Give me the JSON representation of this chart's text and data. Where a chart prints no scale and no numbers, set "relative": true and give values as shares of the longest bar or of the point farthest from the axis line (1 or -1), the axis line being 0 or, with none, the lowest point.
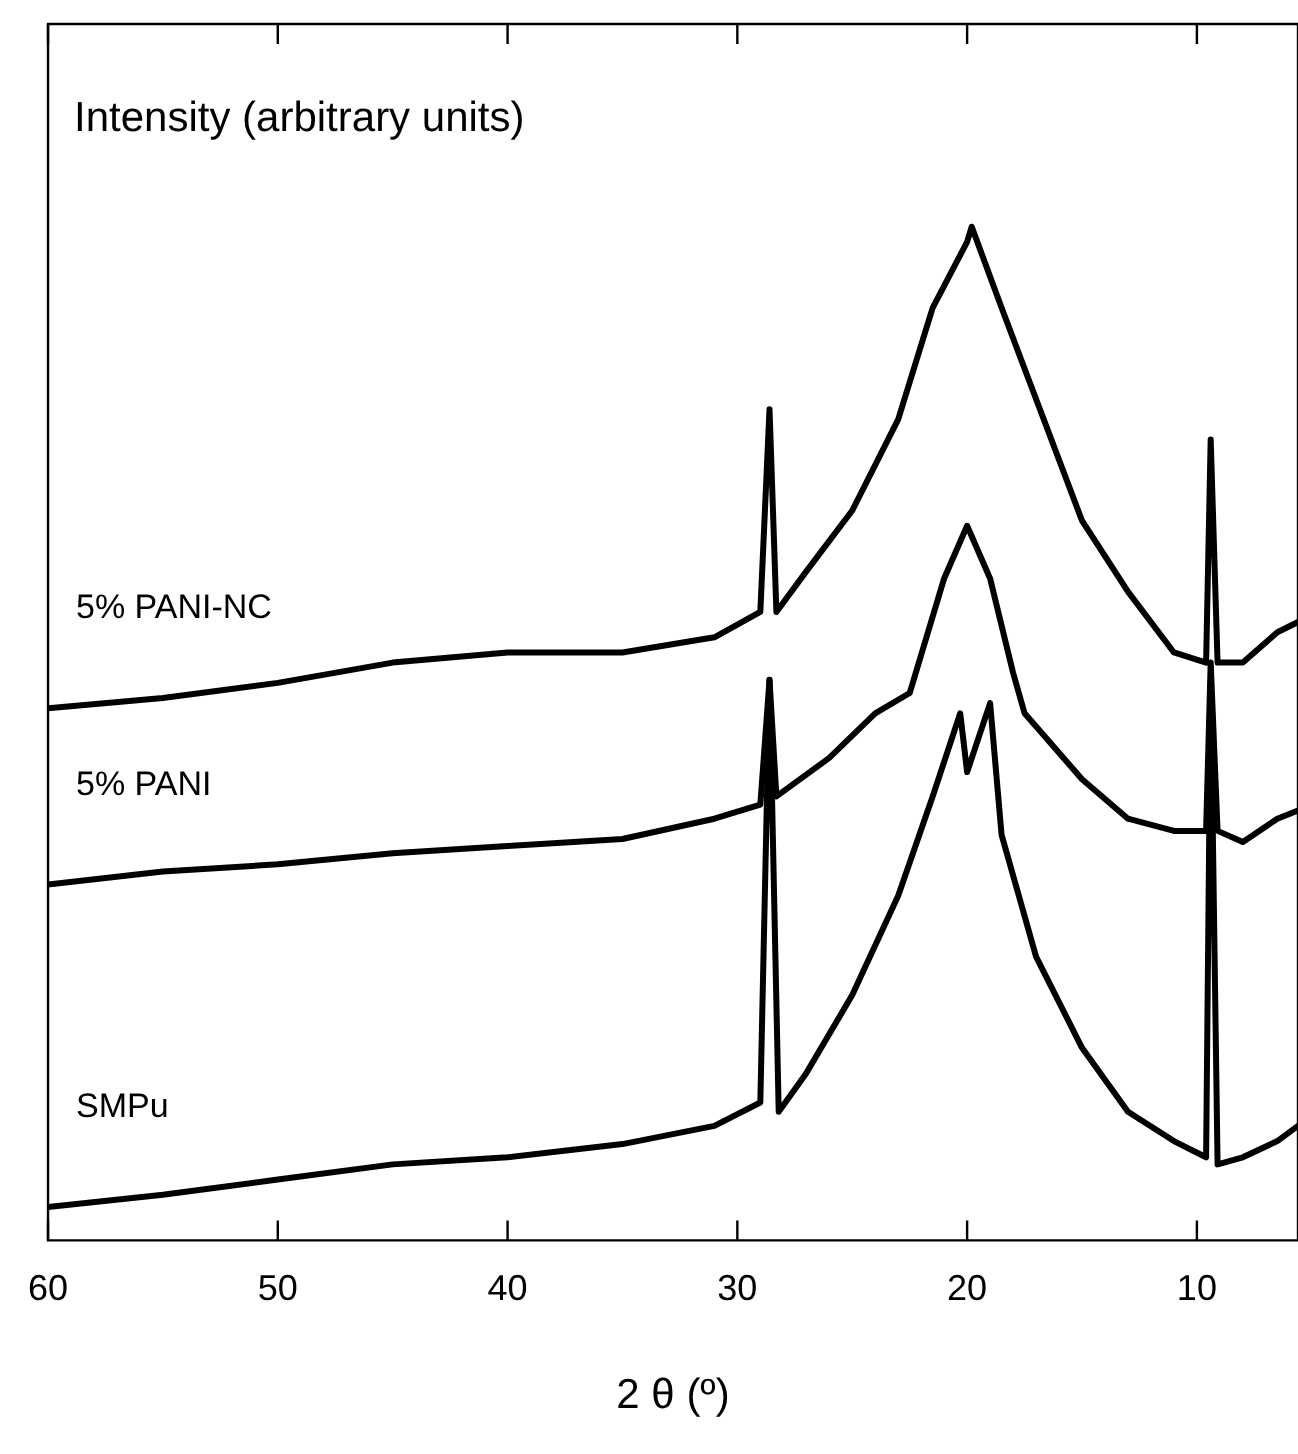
{
  "chart_data": {
    "type": "line",
    "relative": true,
    "xlabel": "2 θ (º)",
    "ylabel": "Intensity (arbitrary units)",
    "xlim": [
      60,
      5.6
    ],
    "xticks": [
      60,
      50,
      40,
      30,
      20,
      10
    ],
    "grid": false,
    "legend": false,
    "marker": "none",
    "line_style": "solid",
    "series": [
      {
        "name": "5% PANI-NC",
        "color": "#000000",
        "x": [
          60,
          55,
          50,
          45,
          40,
          35,
          31,
          29,
          28.6,
          28.3,
          27,
          25,
          23,
          21.5,
          20,
          19.8,
          18.5,
          17,
          15,
          13,
          11,
          9.6,
          9.4,
          9.1,
          8,
          6.5,
          5.6
        ],
        "values": [
          0.525,
          0.535,
          0.55,
          0.57,
          0.58,
          0.58,
          0.595,
          0.62,
          0.82,
          0.62,
          0.66,
          0.72,
          0.81,
          0.92,
          0.985,
          1,
          0.92,
          0.83,
          0.71,
          0.64,
          0.58,
          0.57,
          0.79,
          0.57,
          0.57,
          0.6,
          0.61
        ]
      },
      {
        "name": "5% PANI",
        "color": "#000000",
        "x": [
          60,
          55,
          50,
          45,
          40,
          35,
          31,
          29,
          28.6,
          28.3,
          26,
          24,
          22.5,
          21,
          20,
          19,
          18,
          17.5,
          15,
          13,
          11,
          9.6,
          9.4,
          9.1,
          8,
          6.5,
          5.6
        ],
        "values": [
          0.351,
          0.364,
          0.371,
          0.382,
          0.389,
          0.396,
          0.416,
          0.43,
          0.553,
          0.438,
          0.476,
          0.52,
          0.54,
          0.653,
          0.705,
          0.653,
          0.56,
          0.52,
          0.455,
          0.416,
          0.404,
          0.404,
          0.57,
          0.404,
          0.393,
          0.416,
          0.424
        ]
      },
      {
        "name": "SMPu",
        "color": "#000000",
        "x": [
          60,
          55,
          50,
          45,
          40,
          35,
          31,
          29,
          28.6,
          28.2,
          27,
          25,
          23,
          21.5,
          20.3,
          20,
          19,
          18.5,
          17,
          15,
          13,
          11,
          9.6,
          9.4,
          9.1,
          8,
          6.5,
          5.6
        ],
        "values": [
          0.033,
          0.045,
          0.06,
          0.075,
          0.082,
          0.095,
          0.113,
          0.136,
          0.553,
          0.127,
          0.165,
          0.242,
          0.34,
          0.438,
          0.52,
          0.462,
          0.53,
          0.4,
          0.28,
          0.19,
          0.127,
          0.098,
          0.082,
          0.55,
          0.075,
          0.082,
          0.098,
          0.113
        ]
      }
    ]
  }
}
